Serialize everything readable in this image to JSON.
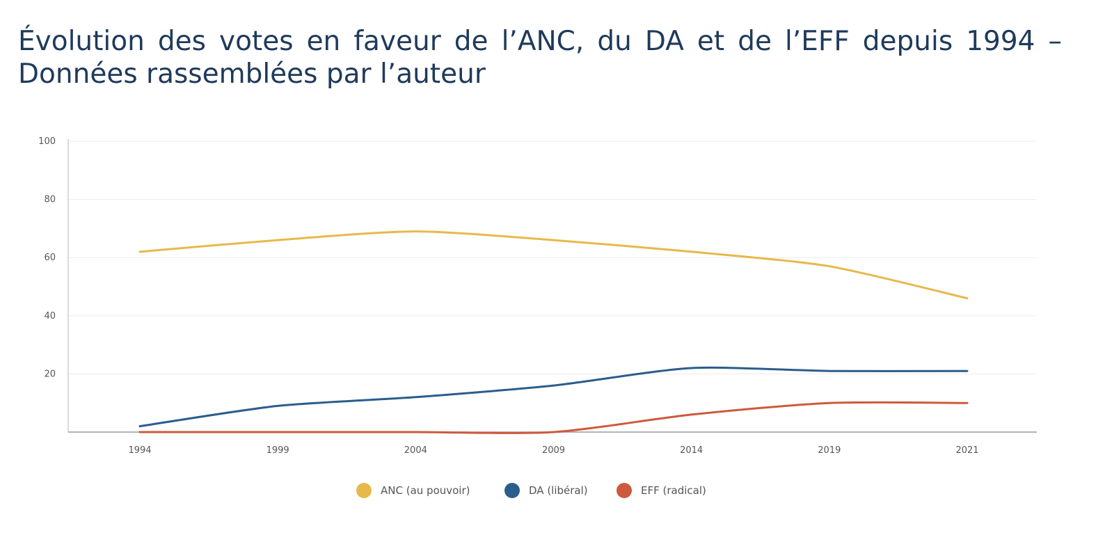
{
  "title": "Évolution des votes en faveur de l’ANC, du DA et de l’EFF depuis 1994 – Données rassemblées par l’auteur",
  "chart_data": {
    "type": "line",
    "title": "",
    "xlabel": "",
    "ylabel": "",
    "categories": [
      "1994",
      "1999",
      "2004",
      "2009",
      "2014",
      "2019",
      "2021"
    ],
    "ylim": [
      0,
      100
    ],
    "yticks": [
      "20",
      "40",
      "60",
      "80",
      "100"
    ],
    "grid": "horizontal",
    "legend": "bottom-center",
    "series": [
      {
        "name": "ANC (au pouvoir)",
        "color": "#e8b84a",
        "values": [
          62,
          66,
          69,
          66,
          62,
          57,
          46
        ]
      },
      {
        "name": "DA (libéral)",
        "color": "#2a5d8c",
        "values": [
          2,
          9,
          12,
          16,
          22,
          21,
          21
        ]
      },
      {
        "name": "EFF (radical)",
        "color": "#cc5a3c",
        "values": [
          0,
          0,
          0,
          0,
          6,
          10,
          10
        ]
      }
    ]
  }
}
